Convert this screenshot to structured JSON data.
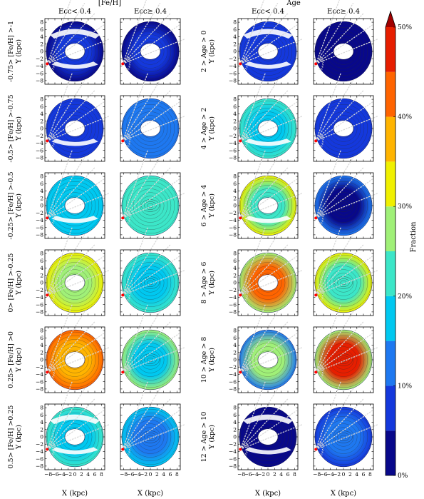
{
  "chart_data": {
    "type": "heatmap",
    "group_titles": [
      "[Fe/H]",
      "Age"
    ],
    "column_titles": [
      "Ecc< 0.4",
      "Ecc≥ 0.4",
      "Ecc< 0.4",
      "Ecc≥ 0.4"
    ],
    "row_labels_left": [
      "-0.75> [Fe/H] >-1",
      "-0.5> [Fe/H] >-0.75",
      "-0.25> [Fe/H] >-0.5",
      "0> [Fe/H] >-0.25",
      "0.25> [Fe/H] >0",
      "0.5> [Fe/H] >0.25"
    ],
    "row_labels_right": [
      "2 > Age > 0",
      "4 > Age > 2",
      "6 > Age > 4",
      "8 > Age > 6",
      "10 > Age > 8",
      "12 > Age > 10"
    ],
    "xlabel": "X (kpc)",
    "ylabel": "Y (kpc)",
    "xlim": [
      -9,
      9
    ],
    "ylim": [
      -9,
      9
    ],
    "x_ticks": [
      "−8",
      "−6",
      "−4",
      "−2",
      "0",
      "2",
      "4",
      "6",
      "8"
    ],
    "y_ticks": [
      "8",
      "6",
      "4",
      "2",
      "0",
      "−2",
      "−4",
      "−6",
      "−8"
    ],
    "colorbar": {
      "label": "Fraction",
      "ticks": [
        "0%",
        "10%",
        "20%",
        "30%",
        "40%",
        "50%"
      ],
      "levels": [
        0,
        5,
        10,
        15,
        20,
        25,
        30,
        35,
        40,
        45,
        50
      ],
      "colors": [
        "#08088a",
        "#1438dc",
        "#1e78f0",
        "#00c8f0",
        "#3ce6c8",
        "#a0f078",
        "#f0f000",
        "#ffb400",
        "#ff6400",
        "#e61e00",
        "#a00000"
      ],
      "extend": "max"
    },
    "panel_values_percent": {
      "feh_ecc_low": [
        {
          "outer": 4,
          "inner": 6
        },
        {
          "outer": 6,
          "inner": 8
        },
        {
          "outer": 17,
          "inner": 19
        },
        {
          "outer": 30,
          "inner": 26
        },
        {
          "outer": 41,
          "inner": 36
        },
        {
          "outer": 20,
          "inner": 18
        }
      ],
      "feh_ecc_high": [
        {
          "outer": 4,
          "inner": 6
        },
        {
          "outer": 10,
          "inner": 14
        },
        {
          "outer": 20,
          "inner": 22
        },
        {
          "outer": 21,
          "inner": 17
        },
        {
          "outer": 26,
          "inner": 16
        },
        {
          "outer": 17,
          "inner": 14
        }
      ],
      "age_ecc_low": [
        {
          "outer": 5,
          "inner": 7
        },
        {
          "outer": 24,
          "inner": 16
        },
        {
          "outer": 30,
          "inner": 24
        },
        {
          "outer": 26,
          "inner": 40
        },
        {
          "outer": 14,
          "inner": 26
        },
        {
          "outer": 3,
          "inner": 4
        }
      ],
      "age_ecc_high": [
        {
          "outer": 3,
          "inner": 3
        },
        {
          "outer": 6,
          "inner": 8
        },
        {
          "outer": 14,
          "inner": 4
        },
        {
          "outer": 33,
          "inner": 20
        },
        {
          "outer": 28,
          "inner": 48
        },
        {
          "outer": 9,
          "inner": 13
        }
      ]
    }
  }
}
